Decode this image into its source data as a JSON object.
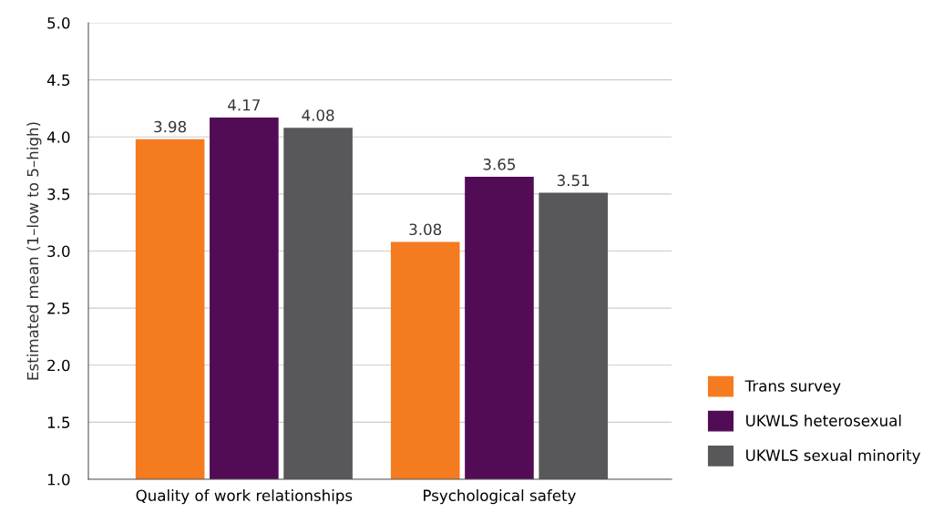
{
  "chart_data": {
    "type": "bar",
    "ylabel": "Estimated mean (1–low to 5–high)",
    "categories": [
      "Quality of work relationships",
      "Psychological safety"
    ],
    "series": [
      {
        "name": "Trans survey",
        "color": "#f47b20",
        "values": [
          3.98,
          3.08
        ]
      },
      {
        "name": "UKWLS heterosexual",
        "color": "#520c56",
        "values": [
          4.17,
          3.65
        ]
      },
      {
        "name": "UKWLS sexual minority",
        "color": "#58585a",
        "values": [
          4.08,
          3.51
        ]
      }
    ],
    "ylim": [
      1.0,
      5.0
    ],
    "yticks": [
      {
        "value": 1.0,
        "label": "1.0"
      },
      {
        "value": 1.5,
        "label": "1.5"
      },
      {
        "value": 2.0,
        "label": "2.0"
      },
      {
        "value": 2.5,
        "label": "2.5"
      },
      {
        "value": 3.0,
        "label": "3.0"
      },
      {
        "value": 3.5,
        "label": "3.5"
      },
      {
        "value": 4.0,
        "label": "4.0"
      },
      {
        "value": 4.5,
        "label": "4.5"
      },
      {
        "value": 5.0,
        "label": "5.0"
      }
    ],
    "grid": "y",
    "legend": "bottom right",
    "data_labels": true
  }
}
